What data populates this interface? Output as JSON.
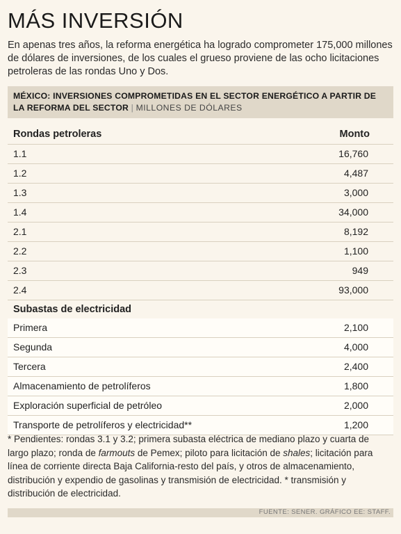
{
  "title": "MÁS INVERSIÓN",
  "intro": "En apenas tres años, la reforma energética ha logrado comprometer 175,000 millones de dólares de inversiones, de los cuales el grueso proviene de las ocho licitaciones petroleras de las rondas Uno y Dos.",
  "chart_data": {
    "type": "table",
    "title": "MÉXICO: INVERSIONES COMPROMETIDAS EN EL SECTOR ENERGÉTICO A PARTIR DE LA REFORMA DEL SECTOR",
    "title_separator": "|",
    "unit": "MILLONES DE DÓLARES",
    "columns": [
      "Rondas petroleras",
      "Monto"
    ],
    "sections": [
      {
        "name": "Rondas petroleras",
        "rows": [
          {
            "label": "1.1",
            "value": "16,760"
          },
          {
            "label": "1.2",
            "value": "4,487"
          },
          {
            "label": "1.3",
            "value": "3,000"
          },
          {
            "label": "1.4",
            "value": "34,000"
          },
          {
            "label": "2.1",
            "value": "8,192"
          },
          {
            "label": "2.2",
            "value": "1,100"
          },
          {
            "label": "2.3",
            "value": "949"
          },
          {
            "label": "2.4",
            "value": "93,000"
          }
        ]
      },
      {
        "name": "Subastas de electricidad",
        "rows": [
          {
            "label": "Primera",
            "value": "2,100"
          },
          {
            "label": "Segunda",
            "value": "4,000"
          },
          {
            "label": "Tercera",
            "value": "2,400"
          },
          {
            "label": "Almacenamiento de petrolíferos",
            "value": "1,800"
          },
          {
            "label": "Exploración superficial de petróleo",
            "value": "2,000"
          },
          {
            "label": "Transporte de petrolíferos y electricidad**",
            "value": "1,200"
          }
        ]
      }
    ]
  },
  "note": {
    "p1": "* Pendientes: rondas 3.1 y 3.2; primera subasta eléctrica de mediano plazo y cuarta de largo plazo; ronda de ",
    "i1": "farmouts",
    "p2": " de Pemex; piloto para licitación de ",
    "i2": "shales",
    "p3": "; licitación para línea de corriente directa Baja California-resto del país, y otros de almacenamiento, distribución y expendio de gasolinas y transmisión de electricidad. * transmisión y distribución de electricidad."
  },
  "source": "FUENTE: SENER.  GRÁFICO EE: STAFF."
}
